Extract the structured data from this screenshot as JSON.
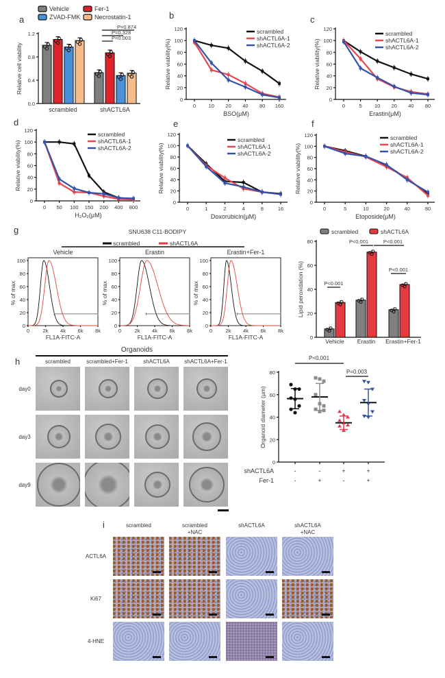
{
  "panels": {
    "a": "a",
    "b": "b",
    "c": "c",
    "d": "d",
    "e": "e",
    "f": "f",
    "g": "g",
    "h": "h",
    "i": "i"
  },
  "colors": {
    "vehicle": "#7f7f7f",
    "fer1": "#e0232b",
    "zvad": "#4a90d9",
    "necrostatin": "#f6bd8a",
    "scrambled": "#111111",
    "sh1": "#e8474f",
    "sh2": "#3552a8",
    "scr_bar": "#7f7f7f",
    "sh_bar": "#e33a3f",
    "scatter_scr_fer": "#8c8c8c",
    "scatter_sh": "#e03a4a",
    "scatter_sh_fer": "#2f55a4"
  },
  "chart_data": [
    {
      "type": "bar",
      "panel": "a",
      "ylabel": "Relative cell viability",
      "ylim": [
        0,
        1.2
      ],
      "yticks": [
        "0.0",
        "0.4",
        "0.8",
        "1.2"
      ],
      "categories": [
        "scrambled",
        "shACTL6A"
      ],
      "series": [
        {
          "name": "Vehicle",
          "values": [
            1.0,
            0.53
          ]
        },
        {
          "name": "Fer-1",
          "values": [
            1.1,
            0.87
          ]
        },
        {
          "name": "ZVAD-FMK",
          "values": [
            0.97,
            0.48
          ]
        },
        {
          "name": "Necrostatin-1",
          "values": [
            1.08,
            0.52
          ]
        }
      ],
      "annotations": [
        "P=0.874",
        "P=0.328",
        "P=0.003"
      ],
      "legend": "top"
    },
    {
      "type": "line",
      "panel": "b",
      "xlabel": "BSO(μM)",
      "ylabel": "Relative viability(%)",
      "ylim": [
        0,
        120
      ],
      "yticks": [
        "0",
        "20",
        "40",
        "60",
        "80",
        "100",
        "120"
      ],
      "categories": [
        "0",
        "10",
        "20",
        "40",
        "80",
        "160"
      ],
      "series": [
        {
          "name": "scrambled",
          "values": [
            100,
            92,
            87,
            65,
            48,
            27
          ]
        },
        {
          "name": "shACTL6A-1",
          "values": [
            97,
            50,
            42,
            27,
            10,
            4
          ]
        },
        {
          "name": "shACTL6A-2",
          "values": [
            100,
            62,
            33,
            21,
            8,
            3
          ]
        }
      ],
      "legend": "top-right"
    },
    {
      "type": "line",
      "panel": "c",
      "xlabel": "Erastin(μM)",
      "ylabel": "Relative viability(%)",
      "ylim": [
        0,
        120
      ],
      "yticks": [
        "0",
        "20",
        "40",
        "60",
        "80",
        "100",
        "120"
      ],
      "categories": [
        "0",
        "5",
        "10",
        "20",
        "40",
        "80"
      ],
      "series": [
        {
          "name": "scrambled",
          "values": [
            100,
            81,
            65,
            54,
            43,
            35
          ]
        },
        {
          "name": "shACTL6A-1",
          "values": [
            100,
            69,
            35,
            21,
            13,
            9
          ]
        },
        {
          "name": "shACTL6A-2",
          "values": [
            98,
            53,
            37,
            22,
            11,
            8
          ]
        }
      ],
      "legend": "top-right"
    },
    {
      "type": "line",
      "panel": "d",
      "xlabel": "H₂O₂(μM)",
      "ylabel": "Relative viability(%)",
      "ylim": [
        0,
        120
      ],
      "yticks": [
        "0",
        "20",
        "40",
        "60",
        "80",
        "100",
        "120"
      ],
      "categories": [
        "0",
        "50",
        "100",
        "150",
        "200",
        "400",
        "800"
      ],
      "series": [
        {
          "name": "scrambled",
          "values": [
            100,
            100,
            97,
            43,
            15,
            5,
            4
          ]
        },
        {
          "name": "shACTL6A-1",
          "values": [
            100,
            30,
            15,
            14,
            8,
            3,
            2
          ]
        },
        {
          "name": "shACTL6A-2",
          "values": [
            100,
            37,
            21,
            14,
            12,
            5,
            4
          ]
        }
      ],
      "legend": "top-right"
    },
    {
      "type": "line",
      "panel": "e",
      "xlabel": "Doxorubicin(μM)",
      "ylabel": "Relative viability(%)",
      "ylim": [
        0,
        120
      ],
      "yticks": [
        "0",
        "20",
        "40",
        "60",
        "80",
        "100",
        "120"
      ],
      "categories": [
        "0",
        "1",
        "2",
        "4",
        "8",
        "16"
      ],
      "series": [
        {
          "name": "scrambled",
          "values": [
            100,
            68,
            37,
            35,
            18,
            15
          ]
        },
        {
          "name": "shACTL6A-1",
          "values": [
            100,
            65,
            43,
            24,
            18,
            14
          ]
        },
        {
          "name": "shACTL6A-2",
          "values": [
            100,
            63,
            34,
            27,
            18,
            14
          ]
        }
      ],
      "legend": "top-right"
    },
    {
      "type": "line",
      "panel": "f",
      "xlabel": "Etoposide(μM)",
      "ylabel": "Relative viability(%)",
      "ylim": [
        0,
        120
      ],
      "yticks": [
        "0",
        "20",
        "40",
        "60",
        "80",
        "100",
        "120"
      ],
      "categories": [
        "0",
        "5",
        "10",
        "20",
        "40",
        "80"
      ],
      "series": [
        {
          "name": "scrambled",
          "values": [
            100,
            92,
            82,
            66,
            42,
            15
          ]
        },
        {
          "name": "shACTL6A-1",
          "values": [
            100,
            90,
            81,
            63,
            44,
            12
          ]
        },
        {
          "name": "shACTL6A-2",
          "values": [
            100,
            87,
            82,
            67,
            40,
            18
          ]
        }
      ],
      "legend": "top-right"
    },
    {
      "type": "area",
      "panel": "g-histograms",
      "title": "SNU638  C11-BODIPY",
      "legend_entries": [
        "scrambled",
        "shACTL6A"
      ],
      "xlabel": "FL1A-FITC-A",
      "ylabel": "% of max",
      "xlim": [
        0,
        8
      ],
      "xticks": [
        "0",
        "2k",
        "4k",
        "6k",
        "8k"
      ],
      "yticks": [
        "0",
        "20",
        "40",
        "60",
        "80",
        "100"
      ],
      "gate": {
        "from": 3,
        "to": 8,
        "level": 18
      },
      "conditions": [
        {
          "name": "Vehicle",
          "curves": [
            {
              "series": "scrambled",
              "peak": 1.8,
              "spread": 0.55
            },
            {
              "series": "shACTL6A",
              "peak": 2.4,
              "spread": 0.7
            }
          ]
        },
        {
          "name": "Erastin",
          "curves": [
            {
              "series": "scrambled",
              "peak": 2.5,
              "spread": 0.75
            },
            {
              "series": "shACTL6A",
              "peak": 3.1,
              "spread": 1.05
            }
          ]
        },
        {
          "name": "Erastin+Fer-1",
          "curves": [
            {
              "series": "scrambled",
              "peak": 1.8,
              "spread": 0.45
            },
            {
              "series": "shACTL6A",
              "peak": 2.3,
              "spread": 0.6
            }
          ]
        }
      ]
    },
    {
      "type": "bar",
      "panel": "g-bar",
      "ylabel": "Lipid peroxidation (%)",
      "ylim": [
        0,
        80
      ],
      "yticks": [
        "0",
        "20",
        "40",
        "60",
        "80"
      ],
      "categories": [
        "Vehicle",
        "Erastin",
        "Erastin+Fer-1"
      ],
      "series": [
        {
          "name": "scrambled",
          "values": [
            7,
            31,
            23
          ]
        },
        {
          "name": "shACTL6A",
          "values": [
            29,
            71,
            44
          ]
        }
      ],
      "annotations": [
        "P<0.001",
        "P<0.001",
        "P<0.001",
        "P<0.001"
      ],
      "legend": "top"
    },
    {
      "type": "scatter",
      "panel": "h-scatter",
      "ylabel": "Organoid diameter (μm)",
      "ylim": [
        0,
        80
      ],
      "yticks": [
        "0",
        "20",
        "40",
        "60",
        "80"
      ],
      "row_labels": [
        "shACTL6A",
        "Fer-1"
      ],
      "groups": [
        {
          "shACTL6A": "-",
          "Fer-1": "-",
          "points": [
            69,
            65,
            65,
            57,
            56,
            50,
            47,
            44
          ],
          "mean": 56.5,
          "sd": 9
        },
        {
          "shACTL6A": "-",
          "Fer-1": "+",
          "points": [
            75,
            74,
            72,
            60,
            52,
            50,
            47,
            45,
            46
          ],
          "mean": 58,
          "sd": 12
        },
        {
          "shACTL6A": "+",
          "Fer-1": "-",
          "points": [
            45,
            42,
            40,
            37,
            35,
            33,
            32,
            28
          ],
          "mean": 35,
          "sd": 6
        },
        {
          "shACTL6A": "+",
          "Fer-1": "+",
          "points": [
            72,
            71,
            65,
            55,
            52,
            45,
            41,
            40
          ],
          "mean": 53,
          "sd": 12
        }
      ],
      "annotations": [
        "P<0.001",
        "P=0.003"
      ]
    }
  ],
  "organoids": {
    "title": "Organoids",
    "columns": [
      "scrambled",
      "scrambled+Fer-1",
      "shACTL6A",
      "shACTL6A+Fer-1"
    ],
    "rows": [
      "day0",
      "day3",
      "day9"
    ]
  },
  "ihc": {
    "columns": [
      "scrambled",
      "scrambled\n+NAC",
      "shACTL6A",
      "shACTL6A\n+NAC"
    ],
    "rows": [
      "ACTL6A",
      "Ki67",
      "4-HNE"
    ]
  }
}
